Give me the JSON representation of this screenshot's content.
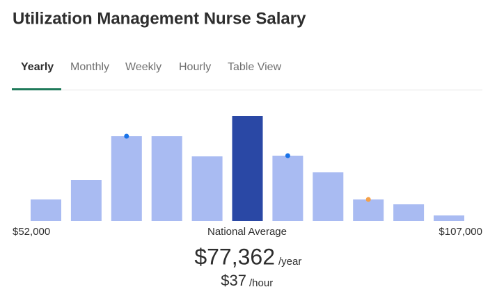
{
  "title": "Utilization Management Nurse Salary",
  "tabs": [
    "Yearly",
    "Monthly",
    "Weekly",
    "Hourly",
    "Table View"
  ],
  "chart_data": {
    "type": "bar",
    "categories": [
      null,
      null,
      null,
      null,
      null,
      null,
      null,
      null,
      null,
      null,
      null
    ],
    "values": [
      31,
      59,
      122,
      122,
      93,
      151,
      94,
      70,
      31,
      24,
      8
    ],
    "colors": [
      "#a9bbf2",
      "#a9bbf2",
      "#a9bbf2",
      "#a9bbf2",
      "#a9bbf2",
      "#2a48a5",
      "#a9bbf2",
      "#a9bbf2",
      "#a9bbf2",
      "#a9bbf2",
      "#a9bbf2"
    ],
    "markers": [
      null,
      null,
      "#1a73e8",
      null,
      null,
      null,
      "#1a73e8",
      null,
      "#f4a14a",
      null,
      null
    ],
    "ylim": [
      0,
      151
    ],
    "range_min_label": "$52,000",
    "center_label": "National Average",
    "range_max_label": "$107,000"
  },
  "average": {
    "yearly": "$77,362",
    "yearly_unit": "/year",
    "hourly": "$37",
    "hourly_unit": "/hour"
  }
}
